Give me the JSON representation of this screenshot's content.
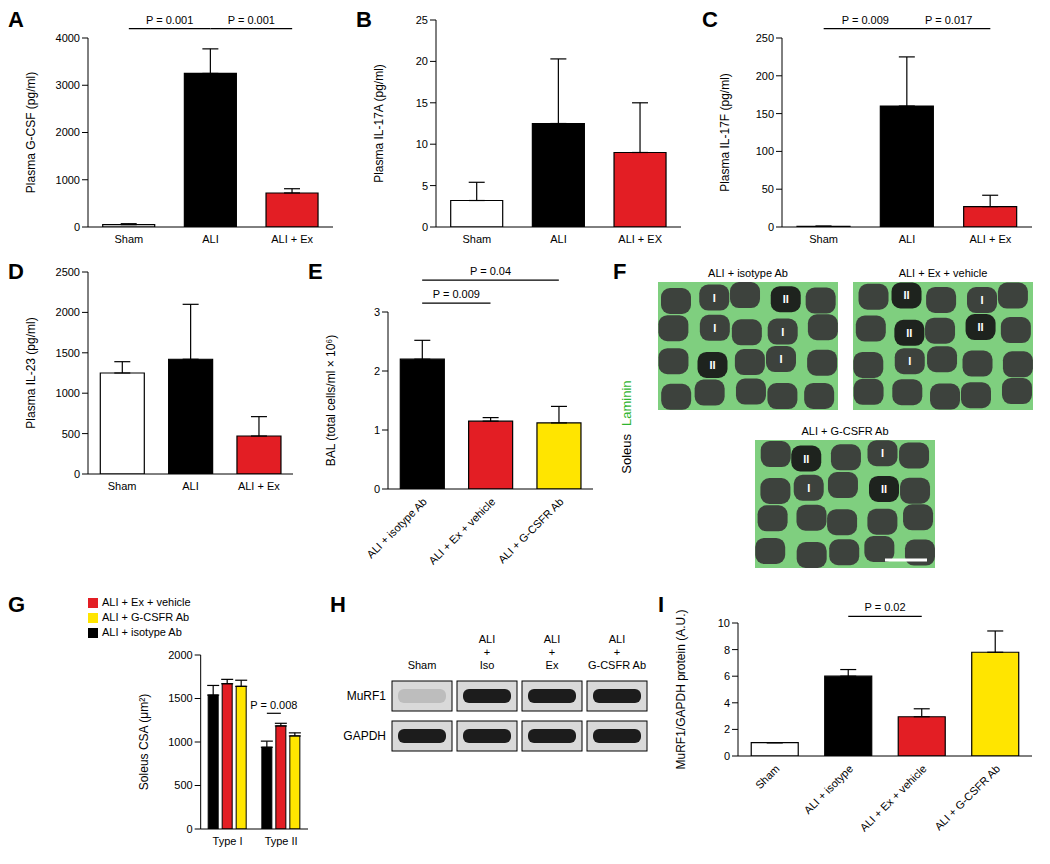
{
  "chart_data": [
    {
      "title": "A",
      "type": "bar",
      "y_label": "Plasma G-CSF (pg/ml)",
      "categories": [
        "Sham",
        "ALI",
        "ALI + Ex"
      ],
      "values": [
        50,
        3250,
        720
      ],
      "errors": [
        20,
        520,
        90
      ],
      "colors": [
        "#ffffff",
        "#000000",
        "#e31e24"
      ],
      "ylim": [
        0,
        4000
      ],
      "yticks": [
        0,
        1000,
        2000,
        3000,
        4000
      ],
      "annotations": [
        {
          "between": [
            "Sham",
            "ALI"
          ],
          "label": "P = 0.001"
        },
        {
          "between": [
            "ALI",
            "ALI + Ex"
          ],
          "label": "P = 0.001"
        }
      ]
    },
    {
      "title": "B",
      "type": "bar",
      "y_label": "Plasma IL-17A (pg/ml)",
      "categories": [
        "Sham",
        "ALI",
        "ALI + EX"
      ],
      "values": [
        3.2,
        12.5,
        9
      ],
      "errors": [
        2.2,
        7.8,
        6
      ],
      "colors": [
        "#ffffff",
        "#000000",
        "#e31e24"
      ],
      "ylim": [
        0,
        25
      ],
      "yticks": [
        0,
        5,
        10,
        15,
        20,
        25
      ]
    },
    {
      "title": "C",
      "type": "bar",
      "y_label": "Plasma IL-17F (pg/ml)",
      "categories": [
        "Sham",
        "ALI",
        "ALI + Ex"
      ],
      "values": [
        1,
        160,
        27
      ],
      "errors": [
        0,
        65,
        15
      ],
      "colors": [
        "#ffffff",
        "#000000",
        "#e31e24"
      ],
      "ylim": [
        0,
        250
      ],
      "yticks": [
        0,
        50,
        100,
        150,
        200,
        250
      ],
      "annotations": [
        {
          "between": [
            "Sham",
            "ALI"
          ],
          "label": "P = 0.009"
        },
        {
          "between": [
            "ALI",
            "ALI + Ex"
          ],
          "label": "P = 0.017"
        }
      ]
    },
    {
      "title": "D",
      "type": "bar",
      "y_label": "Plasma IL-23 (pg/ml)",
      "categories": [
        "Sham",
        "ALI",
        "ALI + Ex"
      ],
      "values": [
        1250,
        1420,
        470
      ],
      "errors": [
        140,
        680,
        240
      ],
      "colors": [
        "#ffffff",
        "#000000",
        "#e31e24"
      ],
      "ylim": [
        0,
        2500
      ],
      "yticks": [
        0,
        500,
        1000,
        1500,
        2000,
        2500
      ]
    },
    {
      "title": "E",
      "type": "bar",
      "y_label": "BAL (total cells/ml × 10⁶)",
      "categories": [
        "ALI + isotype Ab",
        "ALI + Ex + vehicle",
        "ALI + G-CSFR Ab"
      ],
      "values": [
        2.2,
        1.15,
        1.12
      ],
      "errors": [
        0.32,
        0.06,
        0.28
      ],
      "colors": [
        "#000000",
        "#e31e24",
        "#ffe500"
      ],
      "ylim": [
        0,
        3
      ],
      "yticks": [
        0,
        1,
        2,
        3
      ],
      "annotations": [
        {
          "between": [
            "ALI + isotype Ab",
            "ALI + Ex + vehicle"
          ],
          "label": "P = 0.009"
        },
        {
          "between": [
            "ALI + isotype Ab",
            "ALI + G-CSFR Ab"
          ],
          "label": "P = 0.04"
        }
      ]
    },
    {
      "title": "G",
      "type": "bar",
      "y_label": "Soleus CSA (μm²)",
      "categories": [
        "Type I",
        "Type II"
      ],
      "series": [
        {
          "name": "ALI + isotype Ab",
          "color": "#000000",
          "values": [
            1540,
            940
          ],
          "errors": [
            110,
            70
          ]
        },
        {
          "name": "ALI + Ex + vehicle",
          "color": "#e31e24",
          "values": [
            1670,
            1185
          ],
          "errors": [
            50,
            30
          ]
        },
        {
          "name": "ALI + G-CSFR Ab",
          "color": "#ffe500",
          "values": [
            1640,
            1070
          ],
          "errors": [
            70,
            35
          ]
        }
      ],
      "ylim": [
        0,
        2000
      ],
      "yticks": [
        0,
        500,
        1000,
        1500,
        2000
      ],
      "legend": "top-left",
      "annotations": [
        {
          "category": "Type II",
          "between": [
            "ALI + isotype Ab",
            "ALI + Ex + vehicle"
          ],
          "label": "P = 0.008"
        }
      ]
    },
    {
      "title": "I",
      "type": "bar",
      "y_label": "MuRF1/GAPDH protein (A.U.)",
      "categories": [
        "Sham",
        "ALI + isotype",
        "ALI + Ex + vehicle",
        "ALI + G-CSFR Ab"
      ],
      "values": [
        1,
        6,
        2.95,
        7.8
      ],
      "errors": [
        0,
        0.5,
        0.6,
        1.6
      ],
      "colors": [
        "#ffffff",
        "#000000",
        "#e31e24",
        "#ffe500"
      ],
      "ylim": [
        0,
        10
      ],
      "yticks": [
        0,
        2,
        4,
        6,
        8,
        10
      ],
      "annotations": [
        {
          "between": [
            "ALI + isotype",
            "ALI + Ex + vehicle"
          ],
          "label": "P = 0.02"
        }
      ]
    }
  ],
  "panels": {
    "F": {
      "title": "F",
      "side_label": "Soleus",
      "stain_label": "Laminin",
      "tiles": [
        {
          "label": "ALI + isotype Ab",
          "fibers": [
            "I",
            "II",
            "I",
            "I",
            "II",
            "I"
          ]
        },
        {
          "label": "ALI + Ex + vehicle",
          "fibers": [
            "II",
            "I",
            "II",
            "II",
            "I"
          ]
        },
        {
          "label": "ALI + G-CSFR Ab",
          "fibers": [
            "II",
            "I",
            "I",
            "II"
          ]
        }
      ]
    },
    "H": {
      "title": "H",
      "lanes": [
        "Sham",
        "ALI\n+\nIso",
        "ALI\n+\nEx",
        "ALI\n+\nG-CSFR Ab"
      ],
      "rows": [
        "MuRF1",
        "GAPDH"
      ]
    }
  }
}
